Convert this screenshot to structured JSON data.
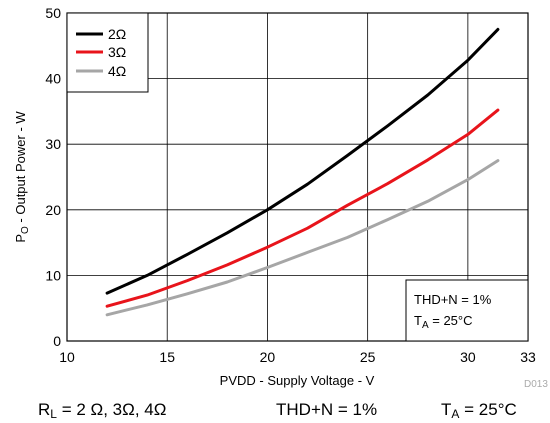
{
  "chart_data": {
    "type": "line",
    "xlabel": "PVDD - Supply Voltage - V",
    "ylabel": "Pₒ - Output Power - W",
    "ylabel_parts": {
      "main": "P",
      "sub": "O",
      "rest": " - Output Power - W"
    },
    "xlim": [
      10,
      33
    ],
    "ylim": [
      0,
      50
    ],
    "xticks": [
      10,
      15,
      20,
      25,
      30,
      33
    ],
    "yticks": [
      0,
      10,
      20,
      30,
      40,
      50
    ],
    "grid": true,
    "legend_position": "top-left",
    "series": [
      {
        "name": "2Ω",
        "color": "#000000",
        "x": [
          12,
          14,
          16,
          18,
          20,
          22,
          24,
          26,
          28,
          30,
          31.5
        ],
        "y": [
          7.3,
          10.0,
          13.2,
          16.5,
          20.0,
          23.9,
          28.3,
          32.8,
          37.5,
          42.8,
          47.5
        ]
      },
      {
        "name": "3Ω",
        "color": "#e8141b",
        "x": [
          12,
          14,
          16,
          18,
          20,
          22,
          24,
          26,
          28,
          30,
          31.5
        ],
        "y": [
          5.3,
          7.0,
          9.2,
          11.6,
          14.3,
          17.2,
          20.7,
          24.0,
          27.6,
          31.5,
          35.2
        ]
      },
      {
        "name": "4Ω",
        "color": "#a6a6a6",
        "x": [
          12,
          14,
          16,
          18,
          20,
          22,
          24,
          26,
          28,
          30,
          31.5
        ],
        "y": [
          4.0,
          5.5,
          7.2,
          9.0,
          11.2,
          13.5,
          15.8,
          18.5,
          21.3,
          24.6,
          27.5
        ]
      }
    ],
    "annotation": {
      "line1": "THD+N = 1%",
      "line2_main": "T",
      "line2_sub": "A",
      "line2_rest": " = 25°C"
    },
    "figure_id": "D013"
  },
  "caption": {
    "rl_main": "R",
    "rl_sub": "L",
    "rl_rest": " = 2 Ω, 3Ω, 4Ω",
    "thd": "THD+N = 1%",
    "ta_main": "T",
    "ta_sub": "A",
    "ta_rest": " = 25°C"
  }
}
